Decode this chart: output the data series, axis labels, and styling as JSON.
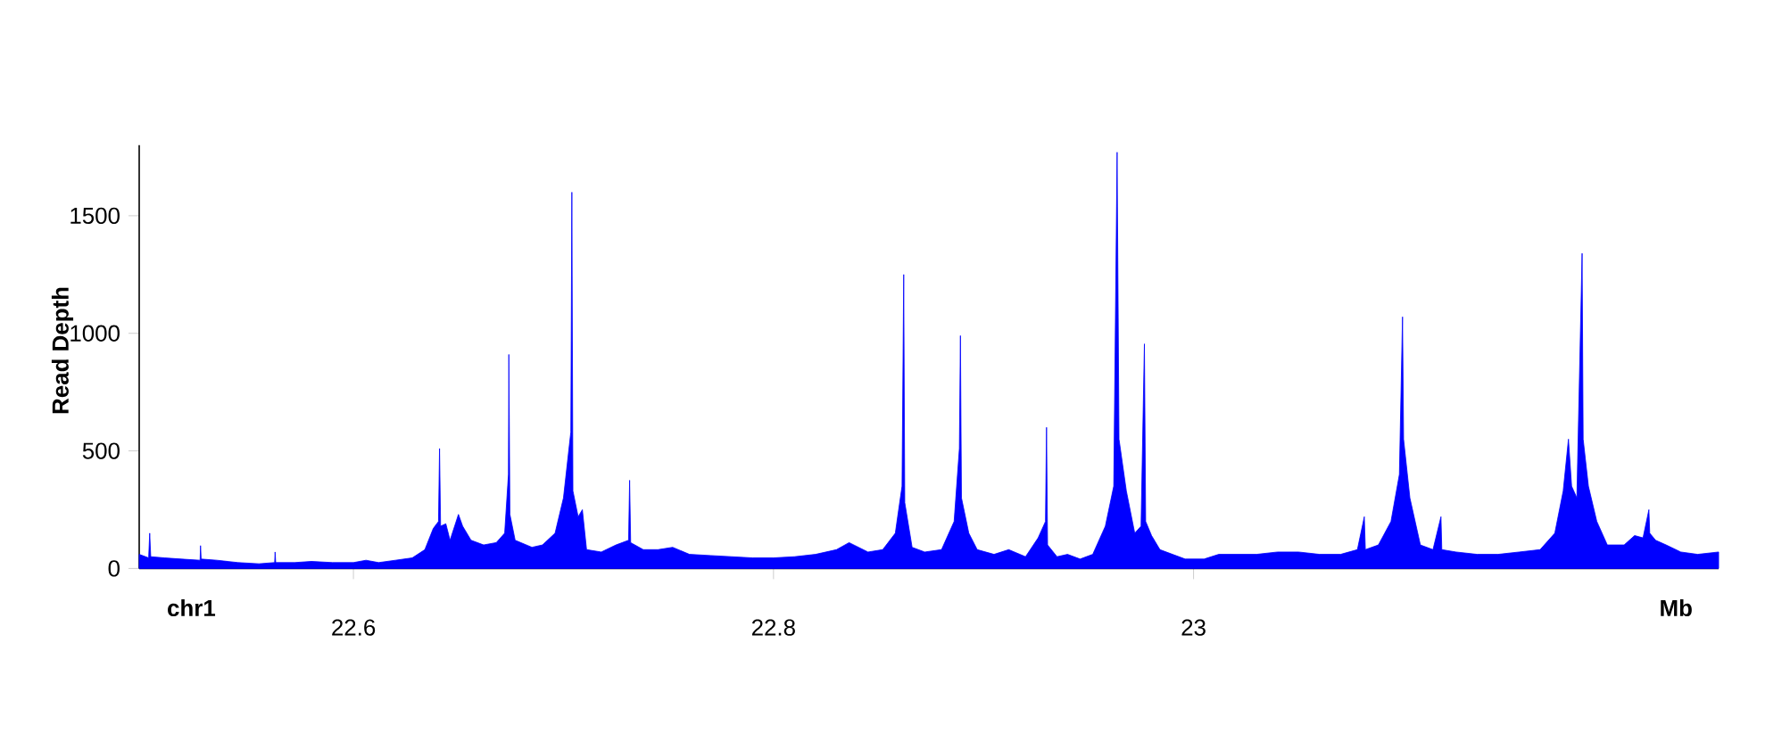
{
  "chart_data": {
    "type": "area",
    "ylabel": "Read Depth",
    "color": "#0000ff",
    "x": [
      22.498,
      22.5025,
      22.503,
      22.5035,
      22.51,
      22.518,
      22.527,
      22.5272,
      22.5275,
      22.535,
      22.545,
      22.555,
      22.5625,
      22.5627,
      22.563,
      22.572,
      22.58,
      22.59,
      22.6,
      22.606,
      22.612,
      22.62,
      22.628,
      22.634,
      22.638,
      22.6405,
      22.641,
      22.6415,
      22.644,
      22.646,
      22.65,
      22.652,
      22.656,
      22.662,
      22.668,
      22.672,
      22.6738,
      22.674,
      22.6745,
      22.677,
      22.685,
      22.69,
      22.696,
      22.7,
      22.7035,
      22.704,
      22.7045,
      22.707,
      22.709,
      22.711,
      22.718,
      22.725,
      22.731,
      22.7315,
      22.732,
      22.738,
      22.745,
      22.752,
      22.76,
      22.77,
      22.78,
      22.79,
      22.8,
      22.81,
      22.82,
      22.83,
      22.836,
      22.845,
      22.852,
      22.858,
      22.8612,
      22.862,
      22.8625,
      22.866,
      22.872,
      22.88,
      22.886,
      22.8885,
      22.889,
      22.8895,
      22.893,
      22.897,
      22.905,
      22.912,
      22.92,
      22.926,
      22.9295,
      22.93,
      22.9305,
      22.935,
      22.94,
      22.946,
      22.952,
      22.958,
      22.962,
      22.9636,
      22.9645,
      22.968,
      22.972,
      22.975,
      22.9766,
      22.9772,
      22.98,
      22.984,
      22.99,
      22.996,
      23.005,
      23.012,
      23.02,
      23.03,
      23.04,
      23.05,
      23.06,
      23.07,
      23.078,
      23.0813,
      23.0818,
      23.088,
      23.094,
      23.098,
      23.0995,
      23.1,
      23.103,
      23.108,
      23.114,
      23.1178,
      23.1182,
      23.125,
      23.135,
      23.145,
      23.155,
      23.165,
      23.172,
      23.176,
      23.1785,
      23.18,
      23.1825,
      23.185,
      23.1855,
      23.188,
      23.192,
      23.197,
      23.205,
      23.21,
      23.214,
      23.2168,
      23.2172,
      23.22,
      23.225,
      23.232,
      23.24,
      23.25
    ],
    "values": [
      60,
      45,
      150,
      50,
      45,
      40,
      35,
      97,
      40,
      35,
      25,
      20,
      25,
      70,
      25,
      25,
      30,
      25,
      25,
      35,
      25,
      35,
      45,
      80,
      170,
      200,
      510,
      180,
      190,
      120,
      230,
      180,
      120,
      100,
      110,
      150,
      400,
      910,
      230,
      120,
      90,
      100,
      150,
      300,
      580,
      1600,
      330,
      220,
      250,
      80,
      70,
      100,
      120,
      375,
      110,
      80,
      80,
      90,
      60,
      55,
      50,
      45,
      45,
      50,
      60,
      80,
      110,
      70,
      80,
      150,
      350,
      1250,
      280,
      90,
      70,
      80,
      200,
      510,
      990,
      300,
      150,
      80,
      60,
      80,
      50,
      130,
      200,
      600,
      100,
      50,
      60,
      40,
      60,
      180,
      350,
      1770,
      550,
      330,
      150,
      180,
      955,
      200,
      140,
      80,
      60,
      40,
      40,
      60,
      60,
      60,
      70,
      70,
      60,
      60,
      80,
      220,
      80,
      100,
      200,
      400,
      1070,
      550,
      300,
      100,
      80,
      220,
      80,
      70,
      60,
      60,
      70,
      80,
      150,
      330,
      550,
      350,
      300,
      1340,
      550,
      350,
      200,
      100,
      100,
      140,
      130,
      250,
      150,
      120,
      100,
      70,
      60,
      70
    ],
    "xlim": [
      22.498,
      23.25
    ],
    "ylim": [
      0,
      1800
    ],
    "xticks": [
      22.6,
      22.8,
      23
    ],
    "yticks": [
      0,
      500,
      1000,
      1500
    ],
    "annotations": [
      "chr1",
      "Mb"
    ]
  }
}
